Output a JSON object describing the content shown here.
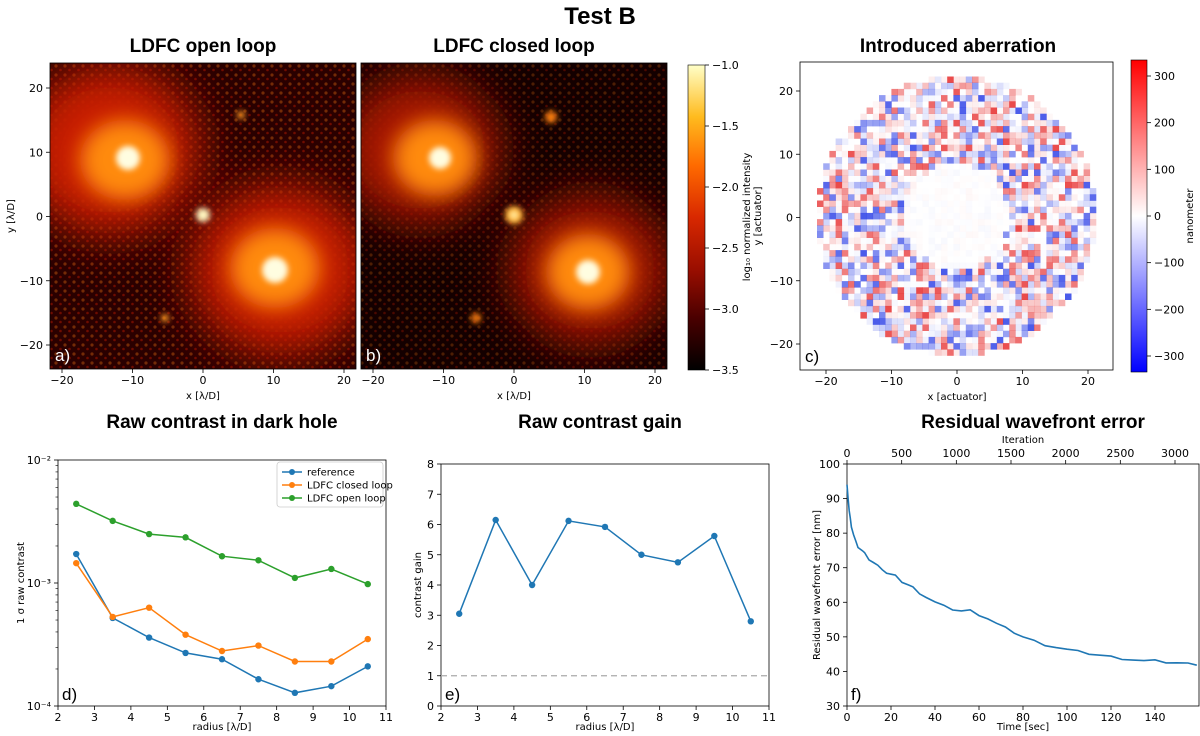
{
  "figure_title": "Test B",
  "panels": {
    "a": {
      "title": "LDFC open loop",
      "label": "a)",
      "xlabel": "x [λ/D]",
      "ylabel": "y [λ/D]",
      "xticks": [
        "−20",
        "−10",
        "0",
        "10",
        "20"
      ],
      "yticks": [
        "20",
        "10",
        "0",
        "−10",
        "−20"
      ]
    },
    "b": {
      "title": "LDFC closed loop",
      "label": "b)",
      "xlabel": "x [λ/D]",
      "xticks": [
        "−20",
        "−10",
        "0",
        "10",
        "20"
      ]
    },
    "colorbar_intensity": {
      "label": "log₁₀ normalized intensity",
      "ticks": [
        "−1.0",
        "−1.5",
        "−2.0",
        "−2.5",
        "−3.0",
        "−3.5"
      ],
      "colors": [
        "#000000",
        "#4a0000",
        "#9a0e00",
        "#d82800",
        "#ff6a00",
        "#ffbb1e",
        "#ffffc8"
      ]
    },
    "c": {
      "title": "Introduced aberration",
      "label": "c)",
      "xlabel": "x [actuator]",
      "ylabel": "y [actuator]",
      "xticks": [
        "−20",
        "−10",
        "0",
        "10",
        "20"
      ],
      "yticks": [
        "20",
        "10",
        "0",
        "−10",
        "−20"
      ]
    },
    "colorbar_aberration": {
      "label": "nanometer",
      "ticks": [
        "300",
        "200",
        "100",
        "0",
        "−100",
        "−200",
        "−300"
      ],
      "colors": [
        "#0000ff",
        "#ffffff",
        "#ff0000"
      ]
    }
  },
  "chart_data": [
    {
      "id": "d",
      "type": "line",
      "title": "Raw contrast in dark hole",
      "label": "d)",
      "xlabel": "radius [λ/D]",
      "ylabel": "1 σ raw contrast",
      "yscale": "log",
      "xlim": [
        2,
        11
      ],
      "ylim": [
        0.0001,
        0.01
      ],
      "xticks": [
        "2",
        "3",
        "4",
        "5",
        "6",
        "7",
        "8",
        "9",
        "10",
        "11"
      ],
      "yticks": [
        "10⁻²",
        "10⁻³",
        "10⁻⁴"
      ],
      "x": [
        2.5,
        3.5,
        4.5,
        5.5,
        6.5,
        7.5,
        8.5,
        9.5,
        10.5
      ],
      "series": [
        {
          "name": "reference",
          "color": "#1f77b4",
          "values": [
            0.00172,
            0.00052,
            0.00036,
            0.00027,
            0.00024,
            0.000165,
            0.000128,
            0.000145,
            0.00021
          ]
        },
        {
          "name": "LDFC closed loop",
          "color": "#ff7f0e",
          "values": [
            0.00145,
            0.00053,
            0.00063,
            0.00038,
            0.00028,
            0.00031,
            0.00023,
            0.00023,
            0.00035
          ]
        },
        {
          "name": "LDFC open loop",
          "color": "#2ca02c",
          "values": [
            0.0044,
            0.0032,
            0.0025,
            0.00235,
            0.00165,
            0.00153,
            0.0011,
            0.0013,
            0.00098
          ]
        }
      ]
    },
    {
      "id": "e",
      "type": "line",
      "title": "Raw contrast gain",
      "label": "e)",
      "xlabel": "radius [λ/D]",
      "ylabel": "contrast gain",
      "xlim": [
        2,
        11
      ],
      "ylim": [
        0,
        8
      ],
      "xticks": [
        "2",
        "3",
        "4",
        "5",
        "6",
        "7",
        "8",
        "9",
        "10",
        "11"
      ],
      "yticks": [
        "8",
        "7",
        "6",
        "5",
        "4",
        "3",
        "2",
        "1",
        "0"
      ],
      "x": [
        2.5,
        3.5,
        4.5,
        5.5,
        6.5,
        7.5,
        8.5,
        9.5,
        10.5
      ],
      "series": [
        {
          "name": "gain",
          "color": "#1f77b4",
          "values": [
            3.05,
            6.15,
            4.0,
            6.12,
            5.92,
            5.0,
            4.75,
            5.62,
            2.8
          ]
        }
      ],
      "reference_line": 1
    },
    {
      "id": "f",
      "type": "line",
      "title": "Residual wavefront error",
      "label": "f)",
      "xlabel": "Time [sec]",
      "ylabel": "Residual wavefront error [nm]",
      "top_xlabel": "Iteration",
      "xlim": [
        0,
        160
      ],
      "ylim": [
        30,
        100
      ],
      "xticks": [
        "0",
        "20",
        "40",
        "60",
        "80",
        "100",
        "120",
        "140"
      ],
      "top_xticks": [
        "0",
        "500",
        "1000",
        "1500",
        "2000",
        "2500",
        "3000"
      ],
      "yticks": [
        "100",
        "90",
        "80",
        "70",
        "60",
        "50",
        "40",
        "30"
      ],
      "color": "#1f77b4",
      "series_x": [
        0,
        0.5,
        1,
        1.5,
        2,
        3,
        4,
        5,
        6,
        7,
        8,
        10,
        12,
        14,
        16,
        18,
        20,
        22,
        25,
        28,
        30,
        33,
        36,
        40,
        44,
        48,
        52,
        56,
        60,
        64,
        68,
        72,
        76,
        80,
        85,
        90,
        95,
        100,
        105,
        110,
        115,
        120,
        125,
        130,
        135,
        140,
        145,
        150,
        155,
        159
      ],
      "series_y": [
        94,
        90,
        86.5,
        84,
        82,
        79.5,
        77.5,
        76.2,
        75.5,
        74.8,
        74,
        72.5,
        71.5,
        70.5,
        69.8,
        68.5,
        68,
        67.5,
        66,
        65,
        64.2,
        62.8,
        61.5,
        60,
        58.8,
        58,
        57.5,
        57.6,
        56.5,
        55.3,
        53.8,
        52.5,
        51.3,
        50,
        48.8,
        47.8,
        47,
        46.3,
        45.7,
        45.2,
        44.7,
        44.2,
        43.8,
        43.4,
        43,
        43,
        42.7,
        42.5,
        42.2,
        41.8
      ]
    }
  ]
}
